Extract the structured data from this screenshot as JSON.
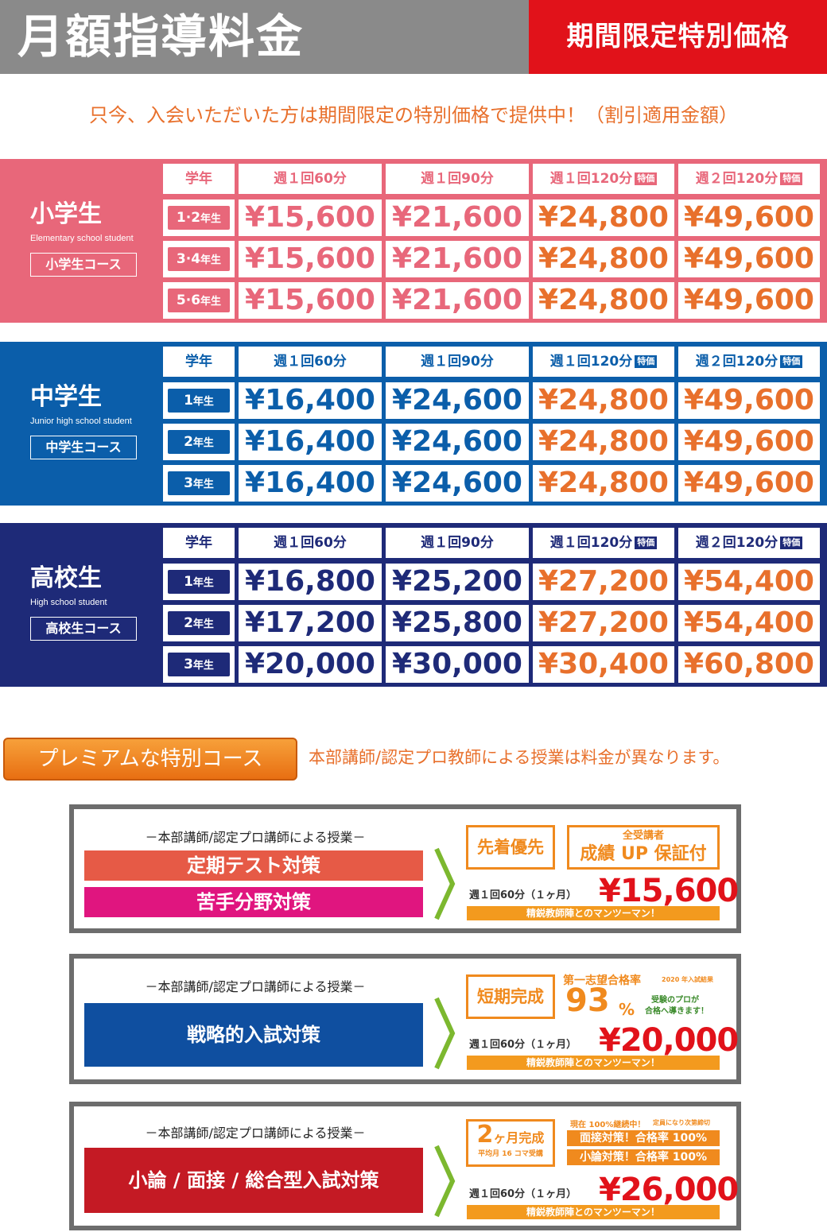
{
  "header": {
    "title": "月額指導料金",
    "badge": "期間限定特別価格"
  },
  "intro": "只今、入会いただいた方は期間限定の特別価格で提供中！（割引適用金額）",
  "columns": [
    "学年",
    "週１回60分",
    "週１回90分",
    "週１回120分",
    "週２回120分"
  ],
  "special_tag": "特価",
  "sections": [
    {
      "logo_main": "小学生",
      "logo_sub": "Elementary school student",
      "badge": "小学生コース",
      "color": "#e8677a",
      "rows": [
        {
          "grade": "1·2",
          "suffix": "年生",
          "prices": [
            "¥15,600",
            "¥21,600",
            "¥24,800",
            "¥49,600"
          ]
        },
        {
          "grade": "3·4",
          "suffix": "年生",
          "prices": [
            "¥15,600",
            "¥21,600",
            "¥24,800",
            "¥49,600"
          ]
        },
        {
          "grade": "5·6",
          "suffix": "年生",
          "prices": [
            "¥15,600",
            "¥21,600",
            "¥24,800",
            "¥49,600"
          ]
        }
      ]
    },
    {
      "logo_main": "中学生",
      "logo_sub": "Junior high school student",
      "badge": "中学生コース",
      "color": "#0b5eaa",
      "rows": [
        {
          "grade": "1",
          "suffix": "年生",
          "prices": [
            "¥16,400",
            "¥24,600",
            "¥24,800",
            "¥49,600"
          ]
        },
        {
          "grade": "2",
          "suffix": "年生",
          "prices": [
            "¥16,400",
            "¥24,600",
            "¥24,800",
            "¥49,600"
          ]
        },
        {
          "grade": "3",
          "suffix": "年生",
          "prices": [
            "¥16,400",
            "¥24,600",
            "¥24,800",
            "¥49,600"
          ]
        }
      ]
    },
    {
      "logo_main": "高校生",
      "logo_sub": "High school student",
      "badge": "高校生コース",
      "color": "#1e2a78",
      "rows": [
        {
          "grade": "1",
          "suffix": "年生",
          "prices": [
            "¥16,800",
            "¥25,200",
            "¥27,200",
            "¥54,400"
          ]
        },
        {
          "grade": "2",
          "suffix": "年生",
          "prices": [
            "¥17,200",
            "¥25,800",
            "¥27,200",
            "¥54,400"
          ]
        },
        {
          "grade": "3",
          "suffix": "年生",
          "prices": [
            "¥20,000",
            "¥30,000",
            "¥30,400",
            "¥60,800"
          ]
        }
      ]
    }
  ],
  "premium": {
    "button": "プレミアムな特別コース",
    "note": "本部講師/認定プロ教師による授業は料金が異なります。"
  },
  "boxes": [
    {
      "caption": "－本部講師/認定プロ講師による授業－",
      "bars": [
        {
          "label": "定期テスト対策",
          "color": "#e65a46"
        },
        {
          "label": "苦手分野対策",
          "color": "#e0157f"
        }
      ],
      "tag1": "先着優先",
      "tag2_top": "全受講者",
      "tag2_main": "成績 UP 保証付",
      "price_label": "週１回60分（１ヶ月）",
      "price": "¥15,600",
      "strip": "精鋭教師陣とのマンツーマン！"
    },
    {
      "caption": "－本部講師/認定プロ講師による授業－",
      "bars": [
        {
          "label": "戦略的入試対策",
          "color": "#0f4fa0"
        }
      ],
      "tag1": "短期完成",
      "rate_title": "第一志望合格率",
      "rate_note": "2020 年入試結果",
      "rate": "93",
      "rate_unit": "%",
      "rate_sub1": "受験のプロが",
      "rate_sub2": "合格へ導きます！",
      "price_label": "週１回60分（１ヶ月）",
      "price": "¥20,000",
      "strip": "精鋭教師陣とのマンツーマン！"
    },
    {
      "caption": "－本部講師/認定プロ講師による授業－",
      "bars": [
        {
          "label": "小論 / 面接 / 総合型入試対策",
          "color": "#c41a24"
        }
      ],
      "tag_num": "2",
      "tag_text": "ヶ月完成",
      "tag_sub": "平均月 16 コマ受講",
      "note1": "現在 100%継続中！",
      "note2": "定員になり次第締切",
      "ob1": "面接対策！合格率 100%",
      "ob2": "小論対策！合格率 100%",
      "price_label": "週１回60分（１ヶ月）",
      "price": "¥26,000",
      "strip": "精鋭教師陣とのマンツーマン！"
    }
  ]
}
